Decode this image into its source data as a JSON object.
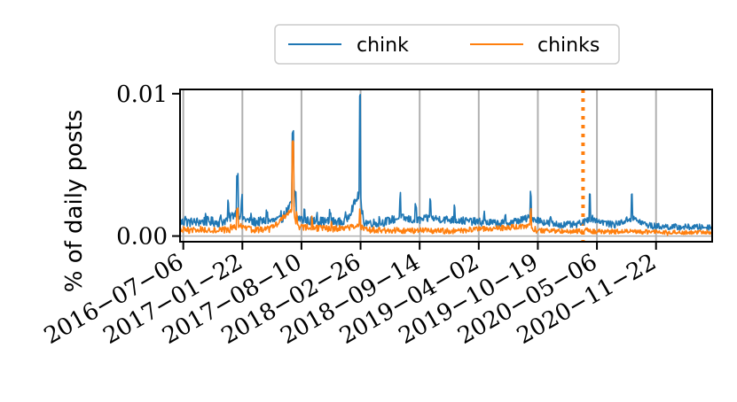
{
  "chart_data": {
    "type": "line",
    "ylabel": "% of daily posts",
    "ylim": [
      -0.0004,
      0.0103
    ],
    "yticks": [
      {
        "value": 0.0,
        "label": "0.00"
      },
      {
        "value": 0.01,
        "label": "0.01"
      }
    ],
    "xlim": [
      "2016-06-25",
      "2021-05-31"
    ],
    "xticks": [
      "2016-07-06",
      "2017-01-22",
      "2017-08-10",
      "2018-02-26",
      "2018-09-14",
      "2019-04-02",
      "2019-10-19",
      "2020-05-06",
      "2020-11-22"
    ],
    "grid": "vertical",
    "legend_position": "top-center",
    "annotations": [
      {
        "type": "vertical-dotted-line",
        "x": "2020-03-20",
        "color": "#ff7f0e"
      }
    ],
    "series": [
      {
        "name": "chink",
        "color": "#1f77b4",
        "baseline": 0.0009,
        "noise": 0.00035,
        "points": [
          [
            "2016-06-25",
            0.001
          ],
          [
            "2016-07-12",
            0.0014
          ],
          [
            "2016-08-05",
            0.0011
          ],
          [
            "2016-09-20",
            0.0015
          ],
          [
            "2016-11-10",
            0.0012
          ],
          [
            "2016-12-05",
            0.0022
          ],
          [
            "2017-01-05",
            0.0042
          ],
          [
            "2017-01-20",
            0.0026
          ],
          [
            "2017-02-20",
            0.0013
          ],
          [
            "2017-04-15",
            0.0016
          ],
          [
            "2017-06-01",
            0.0018
          ],
          [
            "2017-07-12",
            0.0072
          ],
          [
            "2017-07-20",
            0.003
          ],
          [
            "2017-08-20",
            0.0018
          ],
          [
            "2017-10-01",
            0.0017
          ],
          [
            "2017-11-15",
            0.0016
          ],
          [
            "2018-01-05",
            0.0014
          ],
          [
            "2018-02-24",
            0.0099
          ],
          [
            "2018-03-05",
            0.0015
          ],
          [
            "2018-05-01",
            0.0012
          ],
          [
            "2018-07-10",
            0.0028
          ],
          [
            "2018-09-01",
            0.002
          ],
          [
            "2018-10-20",
            0.0027
          ],
          [
            "2019-01-10",
            0.0022
          ],
          [
            "2019-04-20",
            0.0016
          ],
          [
            "2019-07-01",
            0.0013
          ],
          [
            "2019-09-25",
            0.003
          ],
          [
            "2019-12-01",
            0.0012
          ],
          [
            "2020-03-10",
            0.001
          ],
          [
            "2020-04-12",
            0.003
          ],
          [
            "2020-07-01",
            0.001
          ],
          [
            "2020-09-01",
            0.003
          ],
          [
            "2020-11-01",
            0.0008
          ],
          [
            "2021-02-01",
            0.0006
          ],
          [
            "2021-05-31",
            0.0006
          ]
        ]
      },
      {
        "name": "chinks",
        "color": "#ff7f0e",
        "baseline": 0.0004,
        "noise": 0.00025,
        "points": [
          [
            "2016-06-25",
            0.0004
          ],
          [
            "2016-09-01",
            0.0005
          ],
          [
            "2016-12-15",
            0.0006
          ],
          [
            "2017-01-05",
            0.0018
          ],
          [
            "2017-02-15",
            0.0006
          ],
          [
            "2017-05-01",
            0.0007
          ],
          [
            "2017-07-12",
            0.0068
          ],
          [
            "2017-07-25",
            0.0015
          ],
          [
            "2017-09-15",
            0.0012
          ],
          [
            "2017-11-20",
            0.0009
          ],
          [
            "2018-02-24",
            0.0017
          ],
          [
            "2018-03-10",
            0.0006
          ],
          [
            "2018-08-01",
            0.0005
          ],
          [
            "2019-01-01",
            0.0004
          ],
          [
            "2019-09-25",
            0.0018
          ],
          [
            "2019-10-10",
            0.0005
          ],
          [
            "2020-04-01",
            0.0004
          ],
          [
            "2020-09-01",
            0.0003
          ],
          [
            "2021-01-01",
            0.0002
          ],
          [
            "2021-05-31",
            0.0003
          ]
        ]
      }
    ]
  }
}
